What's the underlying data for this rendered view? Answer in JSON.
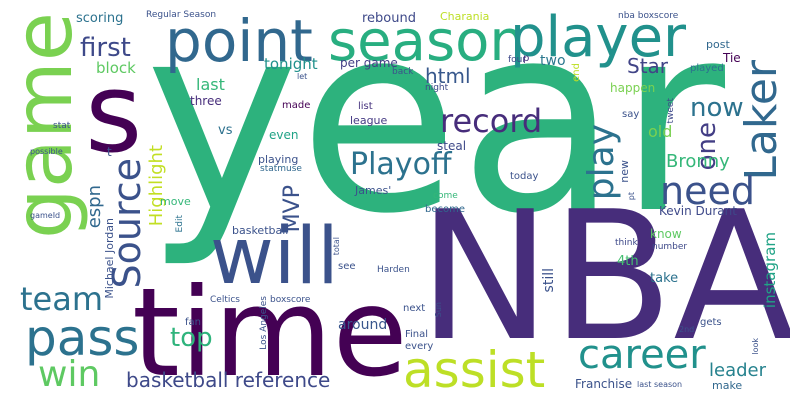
{
  "words": [
    {
      "text": "year",
      "color": "#2db27d"
    },
    {
      "text": "NBA",
      "color": "#472d7b"
    },
    {
      "text": "time",
      "color": "#440154"
    },
    {
      "text": "game",
      "color": "#7ad151"
    },
    {
      "text": "s",
      "color": "#440154"
    },
    {
      "text": "point",
      "color": "#31688e"
    },
    {
      "text": "season",
      "color": "#28ae80"
    },
    {
      "text": "player",
      "color": "#21918c"
    },
    {
      "text": "will",
      "color": "#3b528b"
    },
    {
      "text": "pass",
      "color": "#2c728e"
    },
    {
      "text": "assist",
      "color": "#bddf26"
    },
    {
      "text": "career",
      "color": "#21918c"
    },
    {
      "text": "Laker",
      "color": "#31688e"
    },
    {
      "text": "team",
      "color": "#2c728e"
    },
    {
      "text": "win",
      "color": "#5ec962"
    },
    {
      "text": "Source",
      "color": "#3b528b"
    },
    {
      "text": "need",
      "color": "#3b528b"
    },
    {
      "text": "play",
      "color": "#2c728e"
    },
    {
      "text": "record",
      "color": "#472d7b"
    },
    {
      "text": "Playoff",
      "color": "#2c728e"
    },
    {
      "text": "first",
      "color": "#3e4989"
    },
    {
      "text": "top",
      "color": "#2fb47c"
    },
    {
      "text": "basketball reference",
      "color": "#3e4989"
    },
    {
      "text": "now",
      "color": "#2c728e"
    },
    {
      "text": "one",
      "color": "#433e85"
    },
    {
      "text": "html",
      "color": "#38588c"
    },
    {
      "text": "Star",
      "color": "#414487"
    },
    {
      "text": "leader",
      "color": "#26828e"
    },
    {
      "text": "Bronny",
      "color": "#35b779"
    },
    {
      "text": "Highlight",
      "color": "#c2df23"
    },
    {
      "text": "MVP",
      "color": "#3b528b"
    },
    {
      "text": "espn",
      "color": "#31688e"
    },
    {
      "text": "block",
      "color": "#5ec962"
    },
    {
      "text": "tonight",
      "color": "#21918c"
    },
    {
      "text": "last",
      "color": "#35b779"
    },
    {
      "text": "two",
      "color": "#2a788e"
    },
    {
      "text": "around",
      "color": "#39568c"
    },
    {
      "text": "instagram",
      "color": "#20a386"
    },
    {
      "text": "Kevin Durant",
      "color": "#3e4989"
    },
    {
      "text": "Michael Jordan",
      "color": "#3b528b"
    },
    {
      "text": "scoring",
      "color": "#2c728e"
    },
    {
      "text": "rebound",
      "color": "#3e4989"
    },
    {
      "text": "per game",
      "color": "#433e85"
    },
    {
      "text": "league",
      "color": "#443983"
    },
    {
      "text": "steal",
      "color": "#3e4989"
    },
    {
      "text": "vs",
      "color": "#2d718e"
    },
    {
      "text": "even",
      "color": "#20a386"
    },
    {
      "text": "old",
      "color": "#7ad151"
    },
    {
      "text": "Charania",
      "color": "#bddf26"
    },
    {
      "text": "4th",
      "color": "#44bf70"
    },
    {
      "text": "basketball",
      "color": "#3b528b"
    },
    {
      "text": "still",
      "color": "#3b528b"
    },
    {
      "text": "take",
      "color": "#2c728e"
    },
    {
      "text": "make",
      "color": "#31688e"
    },
    {
      "text": "Franchise",
      "color": "#3b528b"
    },
    {
      "text": "three",
      "color": "#472d7b"
    },
    {
      "text": "made",
      "color": "#440154"
    },
    {
      "text": "list",
      "color": "#46337e"
    },
    {
      "text": "playing",
      "color": "#3b528b"
    },
    {
      "text": "statmuse",
      "color": "#31688e"
    },
    {
      "text": "today",
      "color": "#3b528b"
    },
    {
      "text": "happen",
      "color": "#7ad151"
    },
    {
      "text": "new",
      "color": "#3b528b"
    },
    {
      "text": "Edit",
      "color": "#2c728e"
    },
    {
      "text": "become",
      "color": "#31688e"
    },
    {
      "text": "come",
      "color": "#35b779"
    },
    {
      "text": "move",
      "color": "#35b779"
    },
    {
      "text": "James'",
      "color": "#3b528b"
    },
    {
      "text": "know",
      "color": "#5ec962"
    },
    {
      "text": "think",
      "color": "#3e4989"
    },
    {
      "text": "number",
      "color": "#3e4989"
    },
    {
      "text": "post",
      "color": "#31688e"
    },
    {
      "text": "Tie",
      "color": "#440154"
    },
    {
      "text": "played",
      "color": "#2c728e"
    },
    {
      "text": "four",
      "color": "#3e4989"
    },
    {
      "text": "p",
      "color": "#472d7b"
    },
    {
      "text": "end",
      "color": "#bddf26"
    },
    {
      "text": "say",
      "color": "#3b528b"
    },
    {
      "text": "tweet",
      "color": "#3e4989"
    },
    {
      "text": "night",
      "color": "#3e4989"
    },
    {
      "text": "back",
      "color": "#3b528b"
    },
    {
      "text": "let",
      "color": "#3b528b"
    },
    {
      "text": "nba boxscore",
      "color": "#3b528b"
    },
    {
      "text": "Regular Season",
      "color": "#3b528b"
    },
    {
      "text": "stat",
      "color": "#3b528b"
    },
    {
      "text": "possible",
      "color": "#3b528b"
    },
    {
      "text": "gameId",
      "color": "#3b528b"
    },
    {
      "text": "t",
      "color": "#3b528b"
    },
    {
      "text": "fan",
      "color": "#3b528b"
    },
    {
      "text": "Celtics",
      "color": "#3b528b"
    },
    {
      "text": "Los Angeles",
      "color": "#3b528b"
    },
    {
      "text": "boxscore",
      "color": "#3b528b"
    },
    {
      "text": "total",
      "color": "#3b528b"
    },
    {
      "text": "see",
      "color": "#3b528b"
    },
    {
      "text": "Harden",
      "color": "#3b528b"
    },
    {
      "text": "next",
      "color": "#3b528b"
    },
    {
      "text": "Sun",
      "color": "#3b528b"
    },
    {
      "text": "Final",
      "color": "#3b528b"
    },
    {
      "text": "every",
      "color": "#3b528b"
    },
    {
      "text": "pt",
      "color": "#3b528b"
    },
    {
      "text": "gets",
      "color": "#3b528b"
    },
    {
      "text": "2nd",
      "color": "#3b528b"
    },
    {
      "text": "look",
      "color": "#3b528b"
    },
    {
      "text": "last season",
      "color": "#3b528b"
    }
  ]
}
